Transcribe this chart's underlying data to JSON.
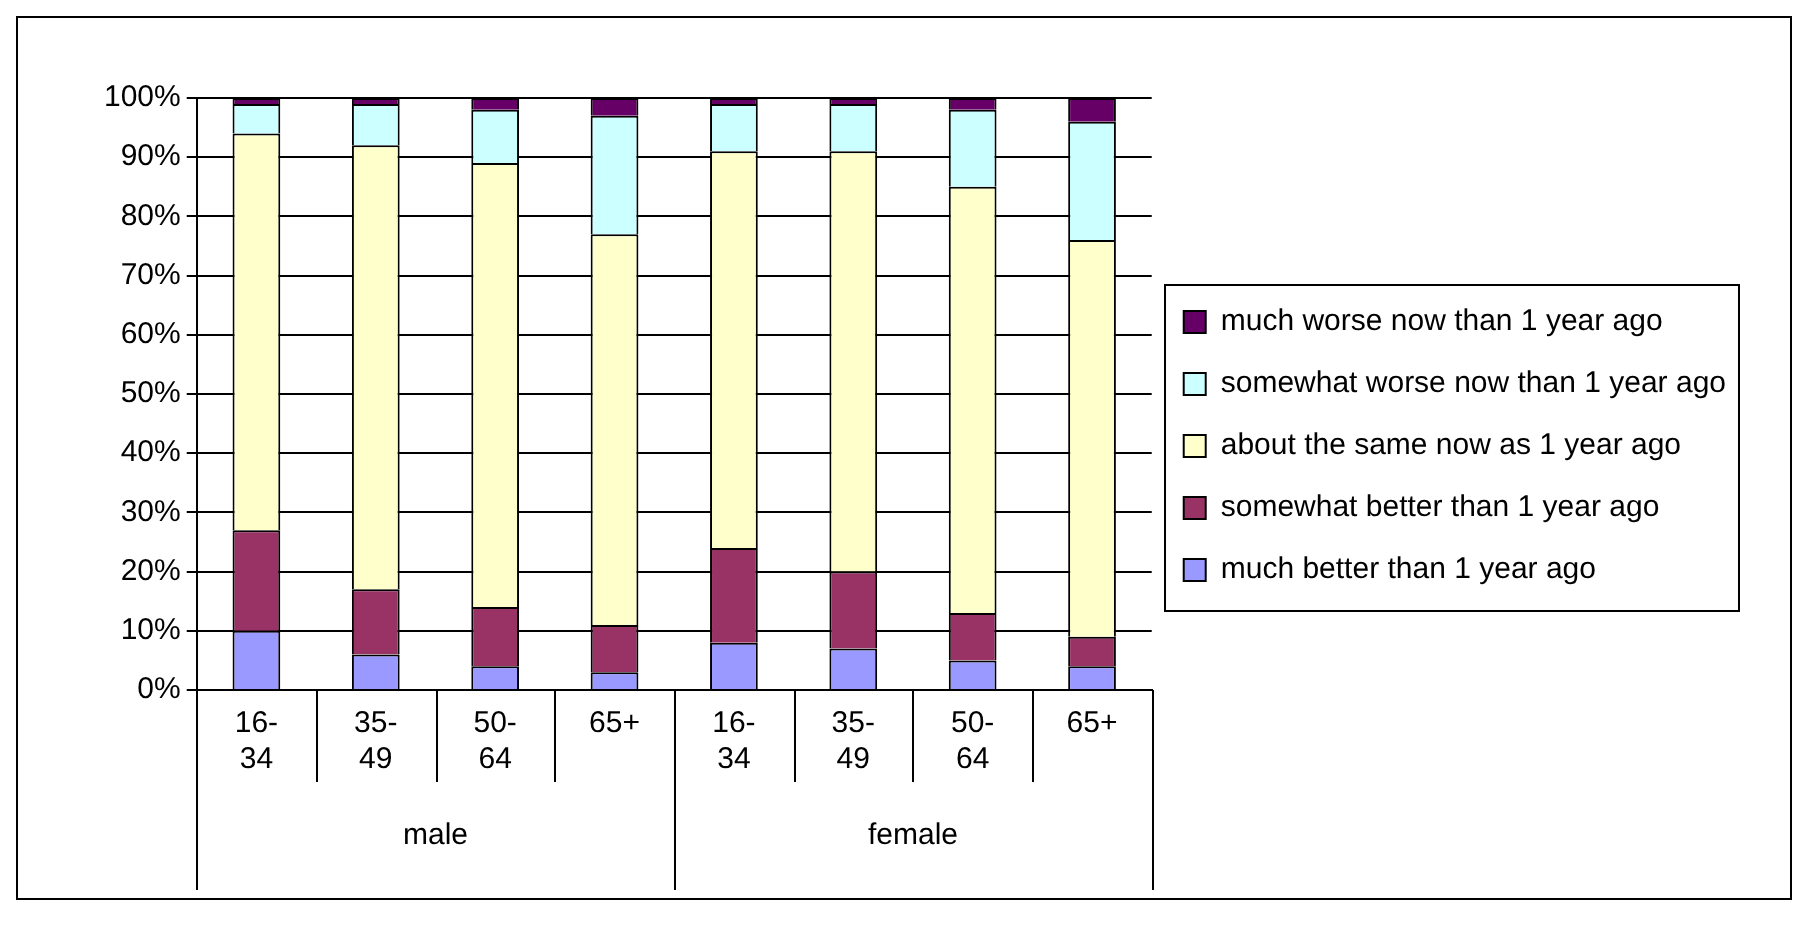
{
  "chart_data": {
    "type": "bar",
    "stacked": true,
    "categories": [
      "16-34",
      "35-49",
      "50-64",
      "65+",
      "16-34",
      "35-49",
      "50-64",
      "65+"
    ],
    "series": [
      {
        "name": "much better than 1 year ago",
        "color": "#9999ff",
        "values": [
          10,
          6,
          4,
          3,
          8,
          7,
          5,
          4
        ]
      },
      {
        "name": "somewhat better than 1 year ago",
        "color": "#993366",
        "values": [
          17,
          11,
          10,
          8,
          16,
          13,
          8,
          5
        ]
      },
      {
        "name": "about the same now as 1 year ago",
        "color": "#ffffcc",
        "values": [
          67,
          75,
          75,
          66,
          67,
          71,
          72,
          67
        ]
      },
      {
        "name": "somewhat worse now than 1 year ago",
        "color": "#ccffff",
        "values": [
          5,
          7,
          9,
          20,
          8,
          8,
          13,
          20
        ]
      },
      {
        "name": "much worse now than 1 year ago",
        "color": "#660066",
        "values": [
          1,
          1,
          2,
          3,
          1,
          1,
          2,
          4
        ]
      }
    ],
    "ylim": [
      0,
      100
    ],
    "yticks": [
      {
        "value": 0,
        "label": "0%"
      },
      {
        "value": 10,
        "label": "10%"
      },
      {
        "value": 20,
        "label": "20%"
      },
      {
        "value": 30,
        "label": "30%"
      },
      {
        "value": 40,
        "label": "40%"
      },
      {
        "value": 50,
        "label": "50%"
      },
      {
        "value": 60,
        "label": "60%"
      },
      {
        "value": 70,
        "label": "70%"
      },
      {
        "value": 80,
        "label": "80%"
      },
      {
        "value": 90,
        "label": "90%"
      },
      {
        "value": 100,
        "label": "100%"
      }
    ],
    "grid": "y",
    "legend": "right",
    "annotations": [
      "male",
      "female"
    ]
  }
}
